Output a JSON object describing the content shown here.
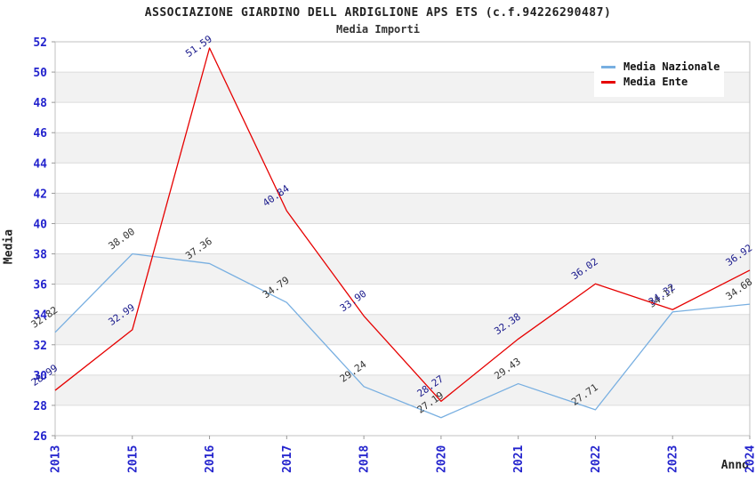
{
  "header": {
    "title": "ASSOCIAZIONE GIARDINO DELL ARDIGLIONE APS ETS (c.f.94226290487)",
    "subtitle": "Media Importi"
  },
  "axes": {
    "y_label": "Media",
    "x_label": "Anno"
  },
  "legend": [
    {
      "label": "Media Nazionale",
      "color": "#78afe1"
    },
    {
      "label": "Media Ente",
      "color": "#e60000"
    }
  ],
  "colors": {
    "tick_label": "#2323cd",
    "grid_line": "#dcdcdc",
    "band_fill": "#f2f2f2",
    "plot_border": "#c0c0c0",
    "tick_mark": "#999999",
    "nazionale_line": "#78afe1",
    "ente_line": "#e60000",
    "nazionale_point_label": "#333333",
    "ente_point_label": "#1a1a8c"
  },
  "chart_data": {
    "type": "line",
    "title": "Media Importi",
    "xlabel": "Anno",
    "ylabel": "Media",
    "categories": [
      "2013",
      "2015",
      "2016",
      "2017",
      "2018",
      "2020",
      "2021",
      "2022",
      "2023",
      "2024"
    ],
    "series": [
      {
        "name": "Media Nazionale",
        "color": "#78afe1",
        "label_color": "#333333",
        "values": [
          32.82,
          38.0,
          37.36,
          34.79,
          29.24,
          27.19,
          29.43,
          27.71,
          34.17,
          34.68
        ]
      },
      {
        "name": "Media Ente",
        "color": "#e60000",
        "label_color": "#1a1a8c",
        "values": [
          28.99,
          32.99,
          51.59,
          40.84,
          33.9,
          28.27,
          32.38,
          36.02,
          34.32,
          36.92
        ]
      }
    ],
    "ylim": [
      26,
      52
    ],
    "ytick_step": 2,
    "yticks": [
      26,
      28,
      30,
      32,
      34,
      36,
      38,
      40,
      42,
      44,
      46,
      48,
      50,
      52
    ],
    "gray_bands": [
      [
        28,
        30
      ],
      [
        32,
        34
      ],
      [
        36,
        38
      ],
      [
        40,
        42
      ],
      [
        44,
        46
      ],
      [
        48,
        50
      ]
    ],
    "grid": true,
    "legend_position": "top-right",
    "data_labels_shown": true
  }
}
